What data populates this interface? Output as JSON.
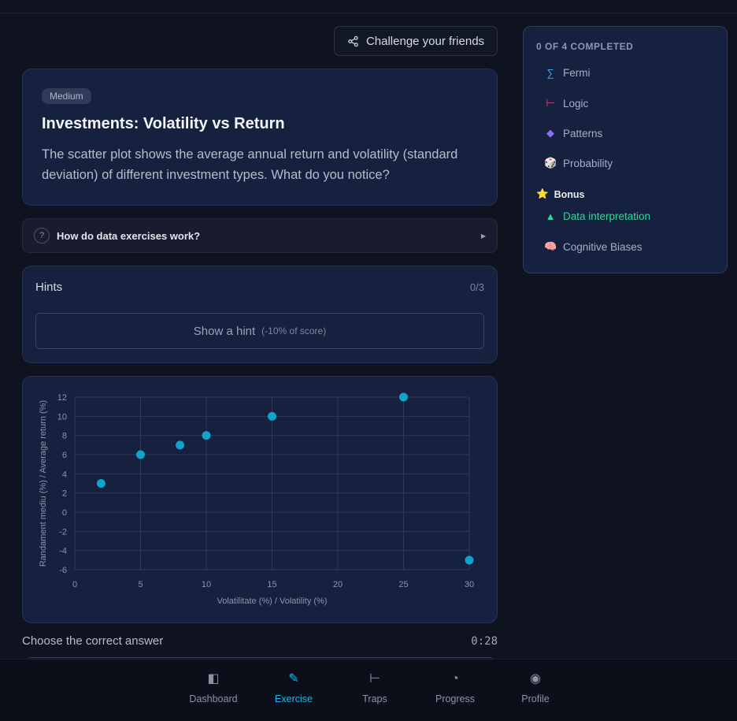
{
  "header": {
    "challenge_label": "Challenge your friends"
  },
  "question": {
    "difficulty": "Medium",
    "title": "Investments: Volatility vs Return",
    "text": "The scatter plot shows the average annual return and volatility (standard deviation) of different investment types. What do you notice?"
  },
  "faq": {
    "label": "How do data exercises work?",
    "icon": "?"
  },
  "hints": {
    "title": "Hints",
    "count": "0/3",
    "button_label": "Show a hint",
    "button_note": "(-10% of score)"
  },
  "chart_data": {
    "type": "scatter",
    "x": [
      2,
      5,
      8,
      10,
      15,
      25,
      30
    ],
    "y": [
      3,
      6,
      7,
      8,
      10,
      12,
      -5
    ],
    "xlabel": "Volatilitate (%) / Volatility (%)",
    "ylabel": "Randament mediu (%) / Average return (%)",
    "xlim": [
      0,
      30
    ],
    "ylim": [
      -6,
      12
    ],
    "xticks": [
      0,
      5,
      10,
      15,
      20,
      25,
      30
    ],
    "yticks": [
      12,
      10,
      8,
      6,
      4,
      2,
      0,
      -2,
      -4,
      -6
    ],
    "grid": true,
    "point_color": "#10a3cc"
  },
  "answer": {
    "label": "Choose the correct answer",
    "timer": "0:28"
  },
  "sidebar": {
    "heading": "0 OF 4 COMPLETED",
    "items": [
      {
        "icon": "∑",
        "label": "Fermi",
        "color": "#3b9bf0"
      },
      {
        "icon": "⊢",
        "label": "Logic",
        "color": "#d8467e"
      },
      {
        "icon": "◆",
        "label": "Patterns",
        "color": "#8a70f2"
      },
      {
        "icon": "🎲",
        "label": "Probability",
        "color": "#e6e6e6"
      }
    ],
    "bonus_label": "Bonus",
    "bonus_icon": "⭐",
    "bonus_items": [
      {
        "icon": "▲",
        "label": "Data interpretation",
        "color": "#2fd79a"
      },
      {
        "icon": "🧠",
        "label": "Cognitive Biases",
        "color": "#e87aa0"
      }
    ]
  },
  "nav": {
    "items": [
      {
        "icon": "◧",
        "label": "Dashboard"
      },
      {
        "icon": "✎",
        "label": "Exercise"
      },
      {
        "icon": "⊢",
        "label": "Traps"
      },
      {
        "icon": "◔",
        "label": "Progress"
      },
      {
        "icon": "◉",
        "label": "Profile"
      }
    ]
  }
}
